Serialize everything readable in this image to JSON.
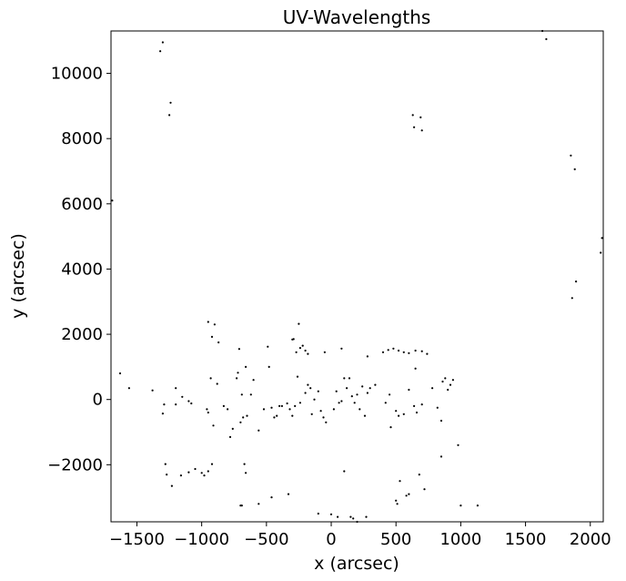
{
  "chart_data": {
    "type": "scatter",
    "title": "UV-Wavelengths",
    "xlabel": "x (arcsec)",
    "ylabel": "y (arcsec)",
    "xlim": [
      -1700,
      2100
    ],
    "ylim": [
      -3750,
      11300
    ],
    "xticks": [
      -1500,
      -1000,
      -500,
      0,
      500,
      1000,
      1500,
      2000
    ],
    "xtick_labels": [
      "−1500",
      "−1000",
      "−500",
      "0",
      "500",
      "1000",
      "1500",
      "2000"
    ],
    "yticks": [
      -2000,
      0,
      2000,
      4000,
      6000,
      8000,
      10000
    ],
    "ytick_labels": [
      "−2000",
      "0",
      "2000",
      "4000",
      "6000",
      "8000",
      "10000"
    ],
    "grid": false,
    "marker_color": "#000000",
    "points": [
      [
        -1300,
        10950
      ],
      [
        -1320,
        10680
      ],
      [
        -1240,
        9100
      ],
      [
        -1250,
        8720
      ],
      [
        1630,
        11300
      ],
      [
        1660,
        11050
      ],
      [
        630,
        8720
      ],
      [
        690,
        8650
      ],
      [
        640,
        8350
      ],
      [
        700,
        8250
      ],
      [
        1850,
        7480
      ],
      [
        1880,
        7060
      ],
      [
        -1690,
        6100
      ],
      [
        2090,
        4950
      ],
      [
        2080,
        4500
      ],
      [
        1890,
        3620
      ],
      [
        1860,
        3110
      ],
      [
        -950,
        2380
      ],
      [
        -900,
        2300
      ],
      [
        -920,
        1920
      ],
      [
        -870,
        1750
      ],
      [
        -710,
        1550
      ],
      [
        -490,
        1620
      ],
      [
        -300,
        1840
      ],
      [
        -290,
        1850
      ],
      [
        -250,
        2320
      ],
      [
        -220,
        1650
      ],
      [
        -240,
        1580
      ],
      [
        -270,
        1450
      ],
      [
        -200,
        1500
      ],
      [
        -180,
        1400
      ],
      [
        -50,
        1450
      ],
      [
        80,
        1560
      ],
      [
        280,
        1320
      ],
      [
        400,
        1450
      ],
      [
        440,
        1520
      ],
      [
        480,
        1560
      ],
      [
        520,
        1500
      ],
      [
        560,
        1450
      ],
      [
        600,
        1420
      ],
      [
        650,
        1500
      ],
      [
        700,
        1480
      ],
      [
        740,
        1400
      ],
      [
        650,
        950
      ],
      [
        -1630,
        800
      ],
      [
        -1560,
        350
      ],
      [
        -1380,
        280
      ],
      [
        -1290,
        -150
      ],
      [
        -1300,
        -430
      ],
      [
        -1200,
        350
      ],
      [
        -1200,
        -150
      ],
      [
        -1150,
        80
      ],
      [
        -1100,
        -50
      ],
      [
        -1080,
        -120
      ],
      [
        -960,
        -300
      ],
      [
        -950,
        -400
      ],
      [
        -930,
        650
      ],
      [
        -910,
        -800
      ],
      [
        -880,
        480
      ],
      [
        -830,
        -200
      ],
      [
        -800,
        -300
      ],
      [
        -780,
        -1150
      ],
      [
        -760,
        -900
      ],
      [
        -730,
        650
      ],
      [
        -720,
        820
      ],
      [
        -700,
        -700
      ],
      [
        -690,
        150
      ],
      [
        -680,
        -550
      ],
      [
        -660,
        1000
      ],
      [
        -650,
        -500
      ],
      [
        -620,
        150
      ],
      [
        -600,
        600
      ],
      [
        -560,
        -950
      ],
      [
        -520,
        -300
      ],
      [
        -480,
        1000
      ],
      [
        -460,
        -250
      ],
      [
        -440,
        -550
      ],
      [
        -420,
        -500
      ],
      [
        -400,
        -200
      ],
      [
        -380,
        -200
      ],
      [
        -340,
        -120
      ],
      [
        -320,
        -300
      ],
      [
        -300,
        -500
      ],
      [
        -280,
        -200
      ],
      [
        -260,
        700
      ],
      [
        -240,
        -100
      ],
      [
        -200,
        200
      ],
      [
        -180,
        450
      ],
      [
        -160,
        350
      ],
      [
        -150,
        -450
      ],
      [
        -130,
        0
      ],
      [
        -100,
        250
      ],
      [
        -80,
        -350
      ],
      [
        -60,
        -550
      ],
      [
        -40,
        -700
      ],
      [
        20,
        -300
      ],
      [
        40,
        250
      ],
      [
        60,
        -100
      ],
      [
        80,
        -50
      ],
      [
        100,
        650
      ],
      [
        120,
        350
      ],
      [
        140,
        650
      ],
      [
        160,
        100
      ],
      [
        180,
        -100
      ],
      [
        200,
        150
      ],
      [
        220,
        -300
      ],
      [
        240,
        400
      ],
      [
        260,
        -500
      ],
      [
        280,
        200
      ],
      [
        300,
        350
      ],
      [
        340,
        450
      ],
      [
        420,
        -100
      ],
      [
        450,
        150
      ],
      [
        460,
        -850
      ],
      [
        500,
        -350
      ],
      [
        520,
        -500
      ],
      [
        560,
        -450
      ],
      [
        600,
        300
      ],
      [
        640,
        -200
      ],
      [
        660,
        -400
      ],
      [
        700,
        -150
      ],
      [
        780,
        350
      ],
      [
        820,
        -250
      ],
      [
        850,
        -650
      ],
      [
        860,
        550
      ],
      [
        880,
        650
      ],
      [
        900,
        300
      ],
      [
        920,
        450
      ],
      [
        940,
        600
      ],
      [
        -1280,
        -1980
      ],
      [
        -1270,
        -2300
      ],
      [
        -1230,
        -2650
      ],
      [
        -1160,
        -2330
      ],
      [
        -1100,
        -2230
      ],
      [
        -1050,
        -2130
      ],
      [
        -1000,
        -2250
      ],
      [
        -980,
        -2330
      ],
      [
        -950,
        -2200
      ],
      [
        -920,
        -1980
      ],
      [
        -700,
        -3250
      ],
      [
        -690,
        -3250
      ],
      [
        -670,
        -1980
      ],
      [
        -660,
        -2250
      ],
      [
        -560,
        -3200
      ],
      [
        -460,
        -3000
      ],
      [
        -330,
        -2900
      ],
      [
        -100,
        -3500
      ],
      [
        0,
        -3520
      ],
      [
        50,
        -3600
      ],
      [
        100,
        -2200
      ],
      [
        150,
        -3600
      ],
      [
        170,
        -3650
      ],
      [
        200,
        -3750
      ],
      [
        270,
        -3600
      ],
      [
        500,
        -3100
      ],
      [
        510,
        -3200
      ],
      [
        530,
        -2500
      ],
      [
        580,
        -2950
      ],
      [
        600,
        -2900
      ],
      [
        680,
        -2300
      ],
      [
        720,
        -2750
      ],
      [
        850,
        -1750
      ],
      [
        980,
        -1400
      ],
      [
        1000,
        -3250
      ],
      [
        1130,
        -3250
      ]
    ]
  }
}
